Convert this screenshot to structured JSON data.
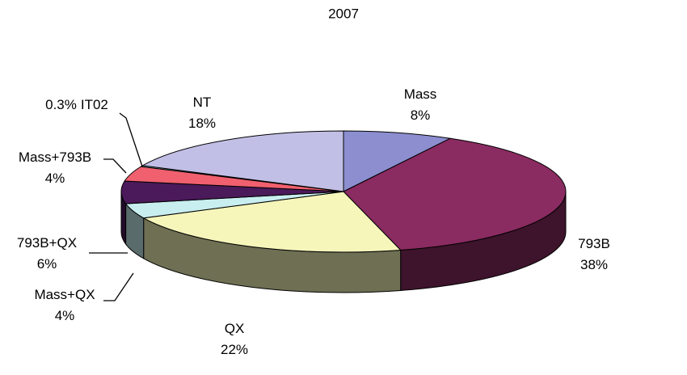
{
  "chart_data": {
    "type": "pie3d",
    "title": "2007",
    "categories": [
      "Mass",
      "793B",
      "QX",
      "Mass+QX",
      "793B+QX",
      "Mass+793B",
      "IT02",
      "NT"
    ],
    "values": [
      8,
      38,
      22,
      4,
      6,
      4,
      0.3,
      18
    ],
    "value_labels": [
      "8%",
      "38%",
      "22%",
      "4%",
      "6%",
      "4%",
      "0.3%",
      "18%"
    ],
    "colors": [
      "#8c8ed0",
      "#8a2b61",
      "#f6f6bb",
      "#c9eef0",
      "#4b1a5a",
      "#f0606e",
      "#8fd8d8",
      "#c2bfe6"
    ]
  }
}
